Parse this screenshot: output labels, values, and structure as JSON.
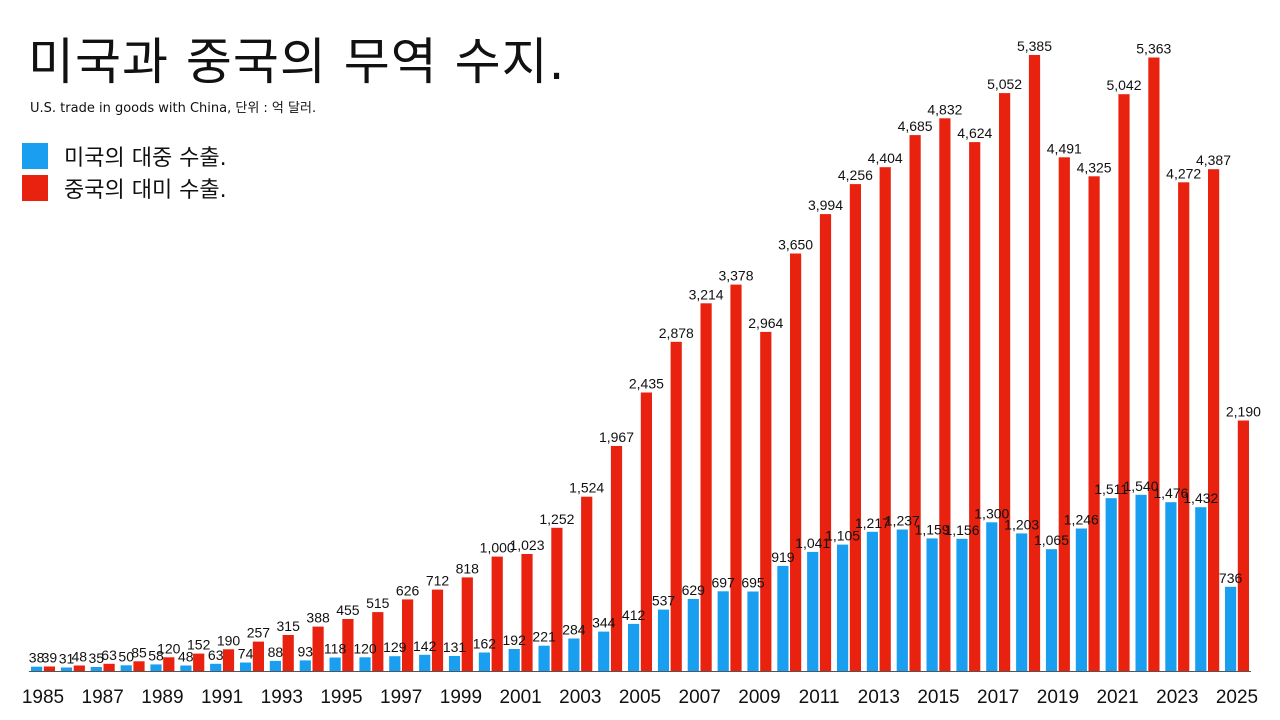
{
  "chart_data": {
    "type": "bar",
    "title": "미국과 중국의 무역 수지.",
    "subtitle": "U.S. trade in goods with China, 단위 : 억 달러.",
    "xlabel": "",
    "ylabel": "",
    "ylim": [
      0,
      5385
    ],
    "grid": false,
    "legend_position": "top-left",
    "categories": [
      1985,
      1986,
      1987,
      1988,
      1989,
      1990,
      1991,
      1992,
      1993,
      1994,
      1995,
      1996,
      1997,
      1998,
      1999,
      2000,
      2001,
      2002,
      2003,
      2004,
      2005,
      2006,
      2007,
      2008,
      2009,
      2010,
      2011,
      2012,
      2013,
      2014,
      2015,
      2016,
      2017,
      2018,
      2019,
      2020,
      2021,
      2022,
      2023,
      2024,
      2025
    ],
    "tick_labels": [
      "1985",
      "1987",
      "1989",
      "1991",
      "1993",
      "1995",
      "1997",
      "1999",
      "2001",
      "2003",
      "2005",
      "2007",
      "2009",
      "2011",
      "2013",
      "2015",
      "2017",
      "2019",
      "2021",
      "2023",
      "2025"
    ],
    "series": [
      {
        "name": "미국의 대중 수출.",
        "color": "#1a9ff0",
        "values": [
          38,
          31,
          35,
          50,
          58,
          48,
          63,
          74,
          88,
          93,
          118,
          120,
          129,
          142,
          131,
          162,
          192,
          221,
          284,
          344,
          412,
          537,
          629,
          697,
          695,
          919,
          1041,
          1105,
          1217,
          1237,
          1159,
          1156,
          1300,
          1203,
          1065,
          1246,
          1511,
          1540,
          1476,
          1432,
          736
        ],
        "labels": [
          "38",
          "31",
          "35",
          "50",
          "58",
          "48",
          "63",
          "74",
          "88",
          "93",
          "118",
          "120",
          "129",
          "142",
          "131",
          "162",
          "192",
          "221",
          "284",
          "344",
          "412",
          "537",
          "629",
          "697",
          "695",
          "919",
          "1,041",
          "1,105",
          "1,217",
          "1,237",
          "1,159",
          "1,156",
          "1,300",
          "1,203",
          "1,065",
          "1,246",
          "1,511",
          "1,540",
          "1,476",
          "1,432",
          "736"
        ]
      },
      {
        "name": "중국의 대미 수출.",
        "color": "#e8220f",
        "values": [
          39,
          48,
          63,
          85,
          120,
          152,
          190,
          257,
          315,
          388,
          455,
          515,
          626,
          712,
          818,
          1000,
          1023,
          1252,
          1524,
          1967,
          2435,
          2878,
          3214,
          3378,
          2964,
          3650,
          3994,
          4256,
          4404,
          4685,
          4832,
          4624,
          5052,
          5385,
          4491,
          4325,
          5042,
          5363,
          4272,
          4387,
          2190
        ],
        "labels": [
          "39",
          "48",
          "63",
          "85",
          "120",
          "152",
          "190",
          "257",
          "315",
          "388",
          "455",
          "515",
          "626",
          "712",
          "818",
          "1,000",
          "1,023",
          "1,252",
          "1,524",
          "1,967",
          "2,435",
          "2,878",
          "3,214",
          "3,378",
          "2,964",
          "3,650",
          "3,994",
          "4,256",
          "4,404",
          "4,685",
          "4,832",
          "4,624",
          "5,052",
          "5,385",
          "4,491",
          "4,325",
          "5,042",
          "5,363",
          "4,272",
          "4,387",
          "2,190"
        ]
      }
    ]
  }
}
